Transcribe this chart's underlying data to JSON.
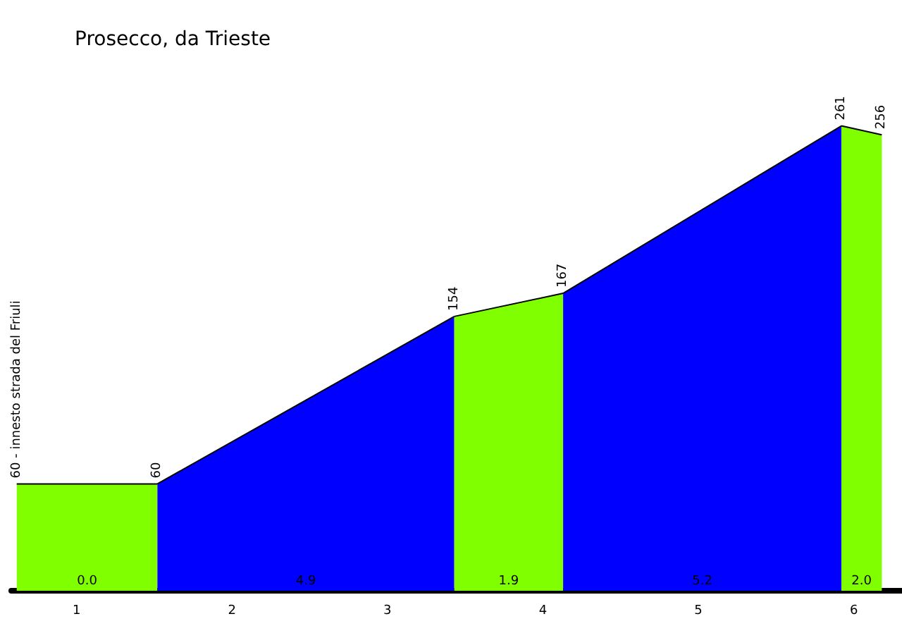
{
  "chart_data": {
    "type": "area",
    "title": "Prosecco, da Trieste",
    "xlim": [
      0.58,
      6.31
    ],
    "xticks": [
      1,
      2,
      3,
      4,
      5,
      6
    ],
    "tick_labels": "x",
    "grid": false,
    "marker": "none",
    "series": [
      {
        "color": "#80ff00",
        "x": [
          0.615,
          1.52
        ],
        "values": [
          60,
          60
        ],
        "value_labels": [
          "60 - innesto strada del Friuli",
          "60"
        ]
      },
      {
        "color": "#0000ff",
        "x": [
          1.52,
          3.43
        ],
        "values": [
          60,
          154
        ],
        "value_labels": [
          null,
          "154"
        ]
      },
      {
        "color": "#80ff00",
        "x": [
          3.43,
          4.13
        ],
        "values": [
          154,
          167
        ],
        "value_labels": [
          null,
          "167"
        ]
      },
      {
        "color": "#0000ff",
        "x": [
          4.13,
          5.92
        ],
        "values": [
          167,
          261
        ],
        "value_labels": [
          null,
          "261"
        ]
      },
      {
        "color": "#80ff00",
        "x": [
          5.92,
          6.18
        ],
        "values": [
          261,
          256
        ],
        "value_labels": [
          null,
          "256"
        ]
      }
    ],
    "annotations": [
      "0.0",
      "4.9",
      "1.9",
      "5.2",
      "2.0"
    ]
  }
}
